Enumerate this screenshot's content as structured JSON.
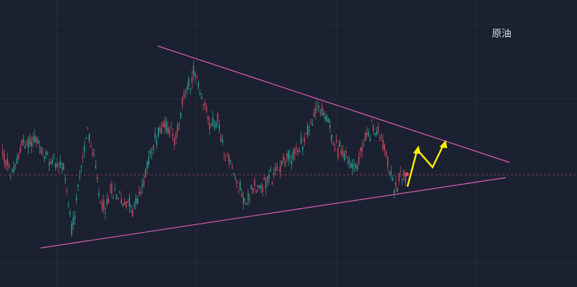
{
  "label": "原油"
}
